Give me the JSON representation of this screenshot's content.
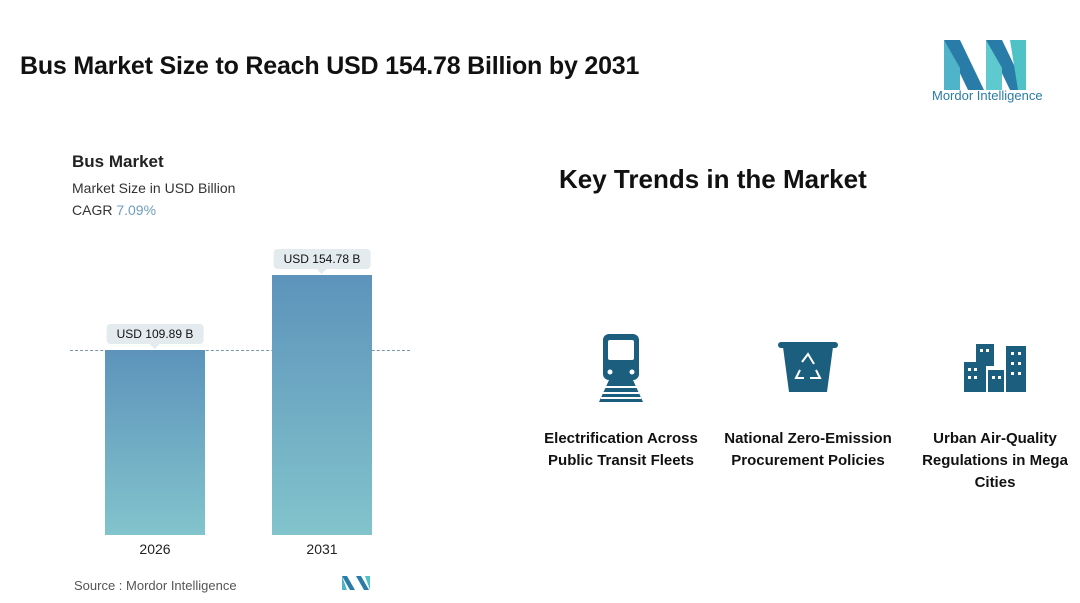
{
  "header": {
    "title": "Bus Market Size to Reach USD 154.78 Billion by 2031",
    "logo_text": "Mordor Intelligence"
  },
  "chart_data": {
    "type": "bar",
    "title": "Bus Market",
    "subtitle": "Market Size in USD Billion",
    "cagr_label": "CAGR",
    "cagr_value": "7.09%",
    "categories": [
      "2026",
      "2031"
    ],
    "values": [
      109.89,
      154.78
    ],
    "data_labels": [
      "USD 109.89 B",
      "USD 154.78 B"
    ],
    "ylim": [
      0,
      160
    ],
    "grid": false,
    "colors": {
      "bar_top": "#5d93bb",
      "bar_bottom": "#82c4cc"
    }
  },
  "source": "Source :  Mordor Intelligence",
  "trends": {
    "title": "Key Trends in the Market",
    "icon_color": "#1b5e7e",
    "items": [
      {
        "icon": "train-icon",
        "label": "Electrification Across Public Transit Fleets"
      },
      {
        "icon": "recycle-bin-icon",
        "label": "National Zero-Emission Procurement Policies"
      },
      {
        "icon": "city-buildings-icon",
        "label": "Urban Air-Quality Regulations in Mega Cities"
      }
    ]
  }
}
